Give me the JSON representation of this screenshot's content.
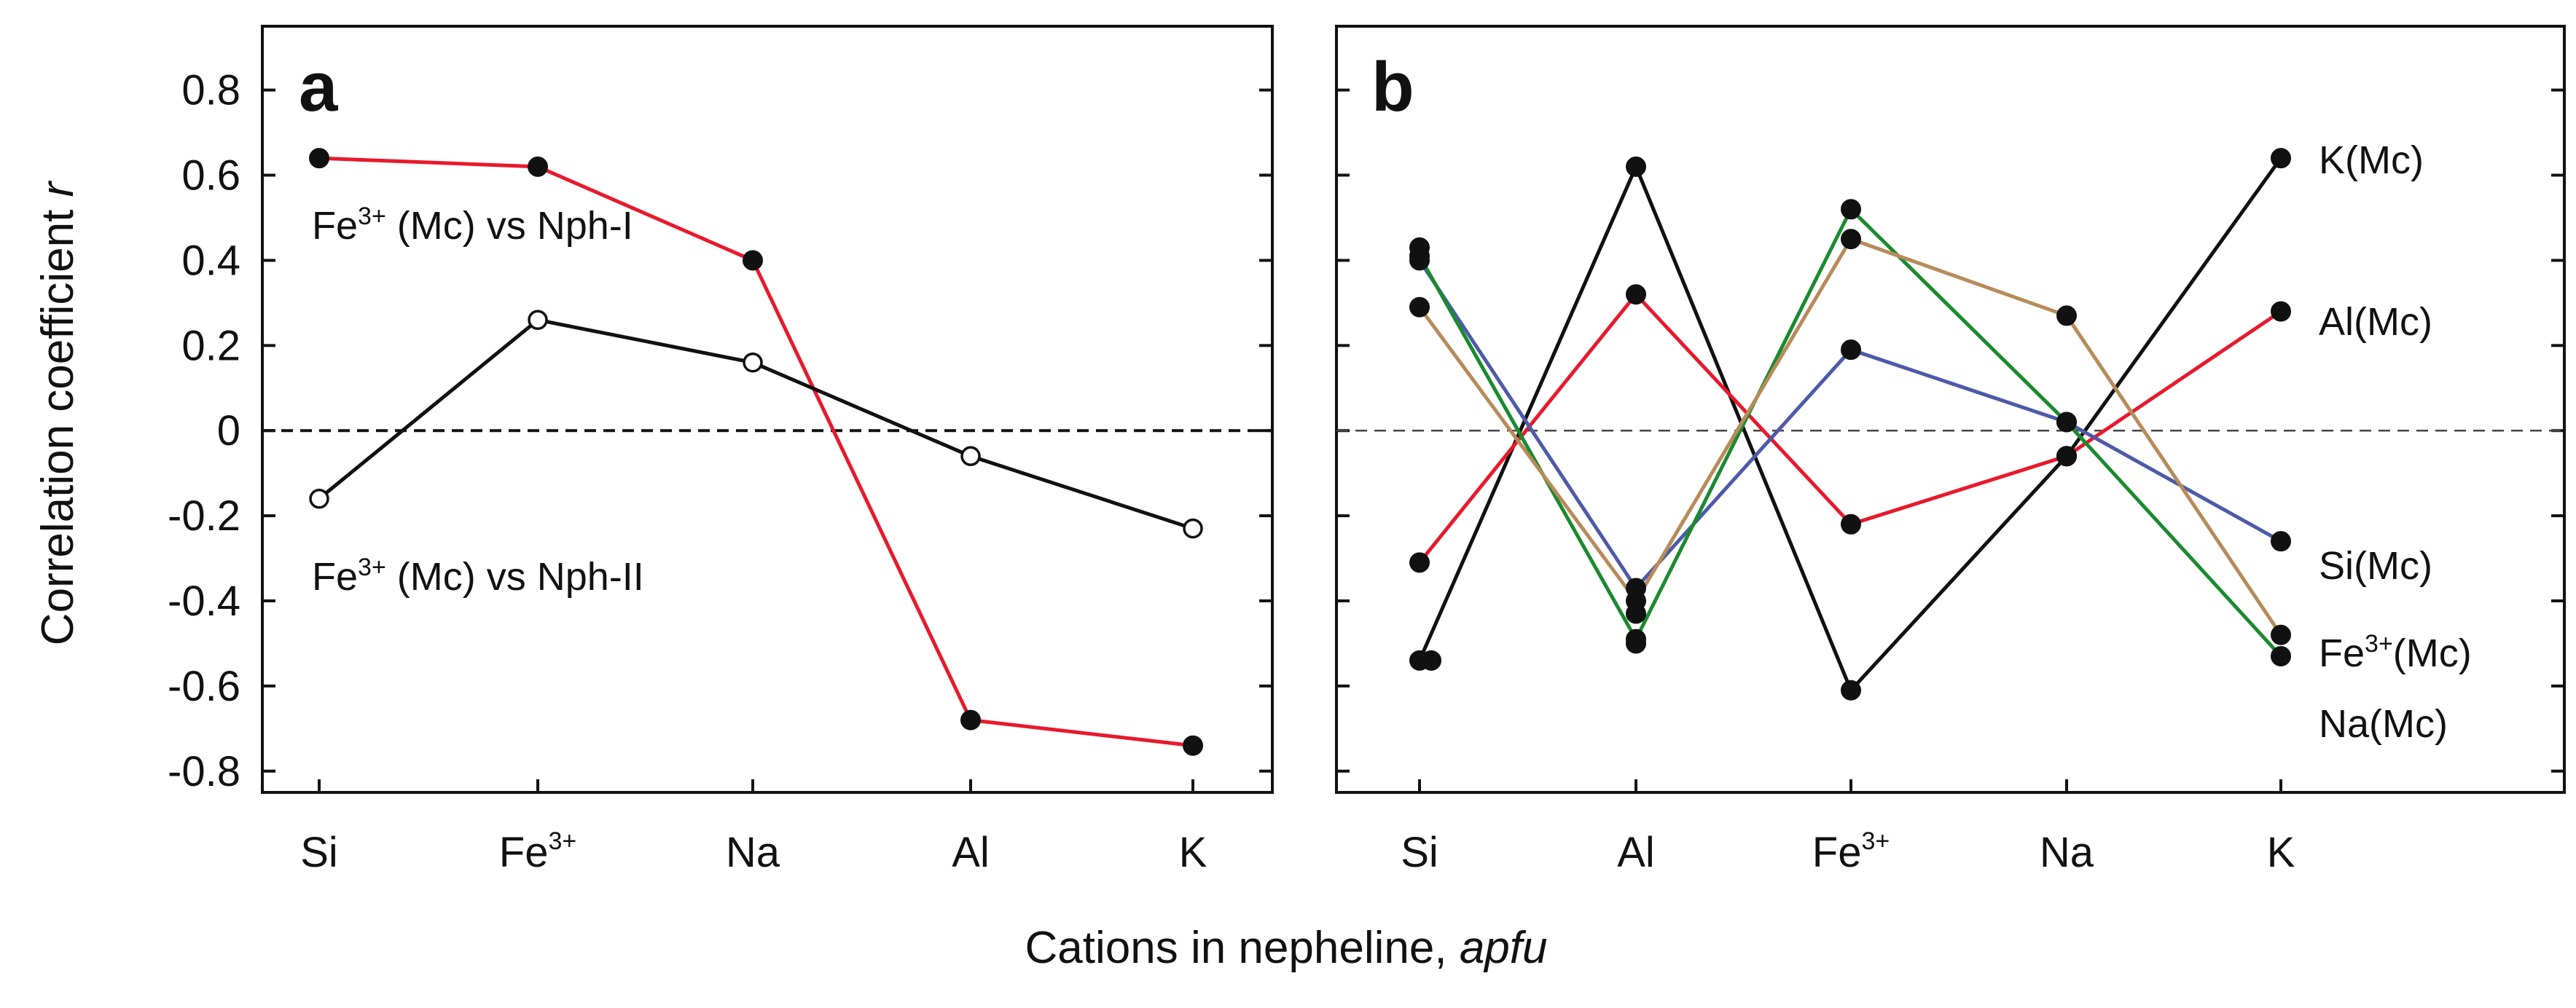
{
  "chart_data": [
    {
      "type": "line",
      "panel": "a",
      "categories": [
        "Si",
        "Fe3+",
        "Na",
        "Al",
        "K"
      ],
      "ylabel": "Correlation coefficient",
      "ylabel_var": "r",
      "ylim": [
        -0.85,
        0.95
      ],
      "y_ticks": [
        "0.8",
        "0.6",
        "0.4",
        "0.2",
        "0",
        "-0.2",
        "-0.4",
        "-0.6",
        "-0.8"
      ],
      "zero_line": "dashed",
      "series": [
        {
          "name": "Fe3+(Mc) vs Nph-I",
          "color": "#e8192c",
          "marker": "filled",
          "values": [
            0.64,
            0.62,
            0.4,
            -0.68,
            -0.74
          ]
        },
        {
          "name": "Fe3+(Mc) vs Nph-II",
          "color": "#111111",
          "marker": "open",
          "values": [
            -0.16,
            0.26,
            0.16,
            -0.06,
            -0.23
          ]
        }
      ],
      "annotations": [
        {
          "base": "Fe",
          "sup": "3+",
          "rest": " (Mc) vs Nph-I"
        },
        {
          "base": "Fe",
          "sup": "3+",
          "rest": " (Mc) vs Nph-II"
        }
      ]
    },
    {
      "type": "line",
      "panel": "b",
      "categories": [
        "Si",
        "Al",
        "Fe3+",
        "Na",
        "K"
      ],
      "ylim": [
        -0.85,
        0.95
      ],
      "zero_line": "dashed",
      "series": [
        {
          "name": "K(Mc)",
          "color": "#111111",
          "values": [
            -0.54,
            0.62,
            -0.61,
            -0.06,
            0.64
          ]
        },
        {
          "name": "Al(Mc)",
          "color": "#e8192c",
          "values": [
            -0.31,
            0.32,
            -0.22,
            -0.06,
            0.28
          ]
        },
        {
          "name": "Si(Mc)",
          "color": "#4d5aa8",
          "values": [
            0.4,
            -0.37,
            0.19,
            0.02,
            -0.26
          ]
        },
        {
          "name": "Fe3+(Mc)",
          "color": "#1a8a2e",
          "values": [
            0.41,
            -0.49,
            0.52,
            0.02,
            -0.53
          ]
        },
        {
          "name": "Na(Mc)",
          "color": "#b78b5a",
          "values": [
            0.29,
            -0.4,
            0.45,
            0.27,
            -0.48
          ]
        }
      ],
      "extra_points": [
        {
          "category": "Si",
          "value": 0.43
        },
        {
          "category": "Si",
          "value": -0.54
        },
        {
          "category": "Al",
          "value": -0.43
        },
        {
          "category": "Al",
          "value": -0.5
        }
      ],
      "series_labels": [
        {
          "base": "K(Mc)",
          "sup": "",
          "rest": ""
        },
        {
          "base": "Al(Mc)",
          "sup": "",
          "rest": ""
        },
        {
          "base": "Si(Mc)",
          "sup": "",
          "rest": ""
        },
        {
          "base": "Fe",
          "sup": "3+",
          "rest": "(Mc)"
        },
        {
          "base": "Na(Mc)",
          "sup": "",
          "rest": ""
        }
      ]
    }
  ],
  "shared": {
    "xlabel": "Cations in nepheline,",
    "xlabel_unit": "apfu"
  }
}
